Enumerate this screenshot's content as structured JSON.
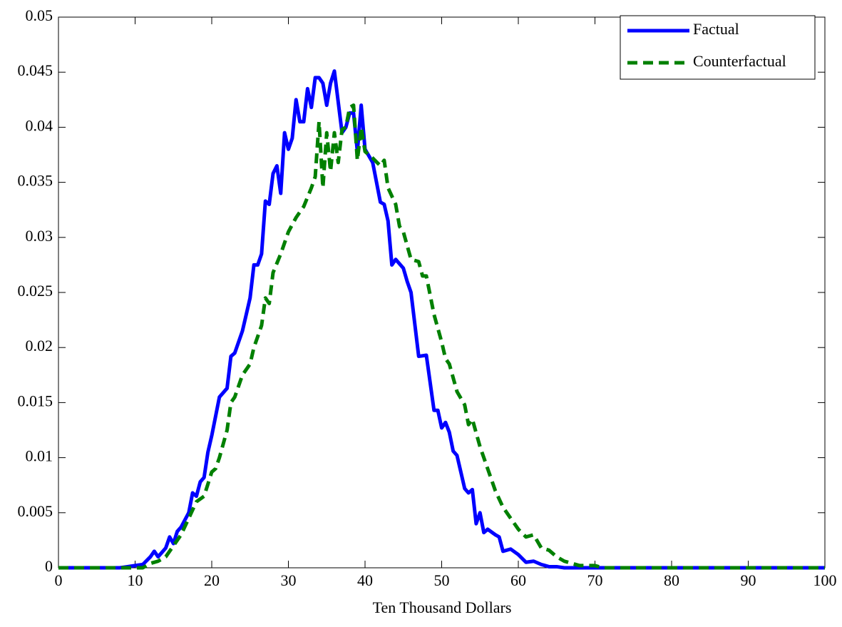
{
  "chart_data": {
    "type": "line",
    "xlabel": "Ten Thousand Dollars",
    "xlim": [
      0,
      100
    ],
    "xticks": [
      0,
      10,
      20,
      30,
      40,
      50,
      60,
      70,
      80,
      90,
      100
    ],
    "ylim": [
      0,
      0.05
    ],
    "yticks": [
      0,
      0.005,
      0.01,
      0.015,
      0.02,
      0.025,
      0.03,
      0.035,
      0.04,
      0.045,
      0.05
    ],
    "legend": "upper right",
    "series": [
      {
        "name": "Factual",
        "color": "#0000ff",
        "style": "solid",
        "x": [
          0,
          8,
          9,
          10,
          11,
          12,
          12.5,
          13,
          14,
          14.5,
          15,
          15.5,
          16,
          17,
          17.5,
          18,
          18.5,
          19,
          19.5,
          20,
          21,
          22,
          22.5,
          23,
          24,
          24.5,
          25,
          25.5,
          26,
          26.5,
          27,
          27.5,
          28,
          28.5,
          29,
          29.5,
          30,
          30.5,
          31,
          31.5,
          32,
          32.5,
          33,
          33.5,
          34,
          34.5,
          35,
          35.5,
          36,
          37,
          37.5,
          38,
          38.5,
          39,
          39.5,
          40,
          41,
          42,
          42.5,
          43,
          43.5,
          44,
          45,
          45.5,
          46,
          47,
          48,
          49,
          49.5,
          50,
          50.5,
          51,
          51.5,
          52,
          53,
          53.5,
          54,
          54.5,
          55,
          55.5,
          56,
          57,
          57.5,
          58,
          59,
          60,
          61,
          62,
          63,
          64,
          65,
          66,
          100
        ],
        "values": [
          0,
          0,
          0.0001,
          0.0002,
          0.0003,
          0.001,
          0.0015,
          0.001,
          0.0018,
          0.0028,
          0.0022,
          0.0033,
          0.0037,
          0.005,
          0.0068,
          0.0065,
          0.0078,
          0.0082,
          0.0105,
          0.012,
          0.0155,
          0.0163,
          0.0192,
          0.0195,
          0.0215,
          0.023,
          0.0245,
          0.0275,
          0.0275,
          0.0285,
          0.0333,
          0.033,
          0.0358,
          0.0365,
          0.034,
          0.0395,
          0.038,
          0.039,
          0.0425,
          0.0405,
          0.0405,
          0.0435,
          0.0418,
          0.0445,
          0.0445,
          0.044,
          0.042,
          0.044,
          0.0451,
          0.0395,
          0.04,
          0.0413,
          0.0413,
          0.0378,
          0.042,
          0.038,
          0.0368,
          0.0332,
          0.033,
          0.0315,
          0.0275,
          0.028,
          0.0272,
          0.026,
          0.025,
          0.0192,
          0.0193,
          0.0143,
          0.0143,
          0.0127,
          0.0132,
          0.0123,
          0.0106,
          0.0102,
          0.0072,
          0.0068,
          0.0071,
          0.004,
          0.005,
          0.0032,
          0.0035,
          0.003,
          0.0028,
          0.0015,
          0.0017,
          0.0012,
          0.0005,
          0.0006,
          0.0003,
          0.0001,
          0.0001,
          0,
          0
        ]
      },
      {
        "name": "Counterfactual",
        "color": "#008000",
        "style": "dashed",
        "x": [
          0,
          11,
          12,
          13,
          14,
          15,
          16,
          17,
          18,
          19,
          20,
          20.5,
          21,
          22,
          22.5,
          23,
          24,
          25,
          25.5,
          26,
          26.5,
          27,
          27.5,
          28,
          29,
          30,
          31,
          32,
          33,
          33.5,
          34,
          34.5,
          35,
          35.5,
          36,
          36.5,
          37,
          37.5,
          38,
          38.5,
          39,
          39.5,
          40,
          41,
          42,
          42.5,
          43,
          44,
          44.5,
          45,
          46,
          47,
          47.5,
          48,
          49,
          50,
          50.5,
          51,
          52,
          53,
          53.5,
          54,
          55,
          56,
          57,
          58,
          59,
          60,
          61,
          62,
          63,
          64,
          65,
          66,
          67,
          68,
          70,
          71,
          100
        ],
        "values": [
          0,
          0,
          0.0004,
          0.0006,
          0.001,
          0.002,
          0.003,
          0.0045,
          0.006,
          0.0065,
          0.0087,
          0.009,
          0.01,
          0.0125,
          0.015,
          0.0155,
          0.0175,
          0.0185,
          0.02,
          0.021,
          0.022,
          0.0245,
          0.024,
          0.0268,
          0.0285,
          0.0305,
          0.0318,
          0.0328,
          0.0345,
          0.0355,
          0.0405,
          0.0345,
          0.0395,
          0.036,
          0.0395,
          0.0368,
          0.0398,
          0.04,
          0.0418,
          0.042,
          0.037,
          0.04,
          0.0378,
          0.0372,
          0.0365,
          0.037,
          0.0345,
          0.033,
          0.031,
          0.0305,
          0.028,
          0.0278,
          0.0265,
          0.0265,
          0.023,
          0.0205,
          0.019,
          0.0185,
          0.016,
          0.0148,
          0.013,
          0.0135,
          0.011,
          0.009,
          0.007,
          0.0055,
          0.0045,
          0.0035,
          0.0028,
          0.003,
          0.0018,
          0.0016,
          0.001,
          0.0006,
          0.0004,
          0.0002,
          0.0002,
          0,
          0
        ]
      }
    ]
  }
}
